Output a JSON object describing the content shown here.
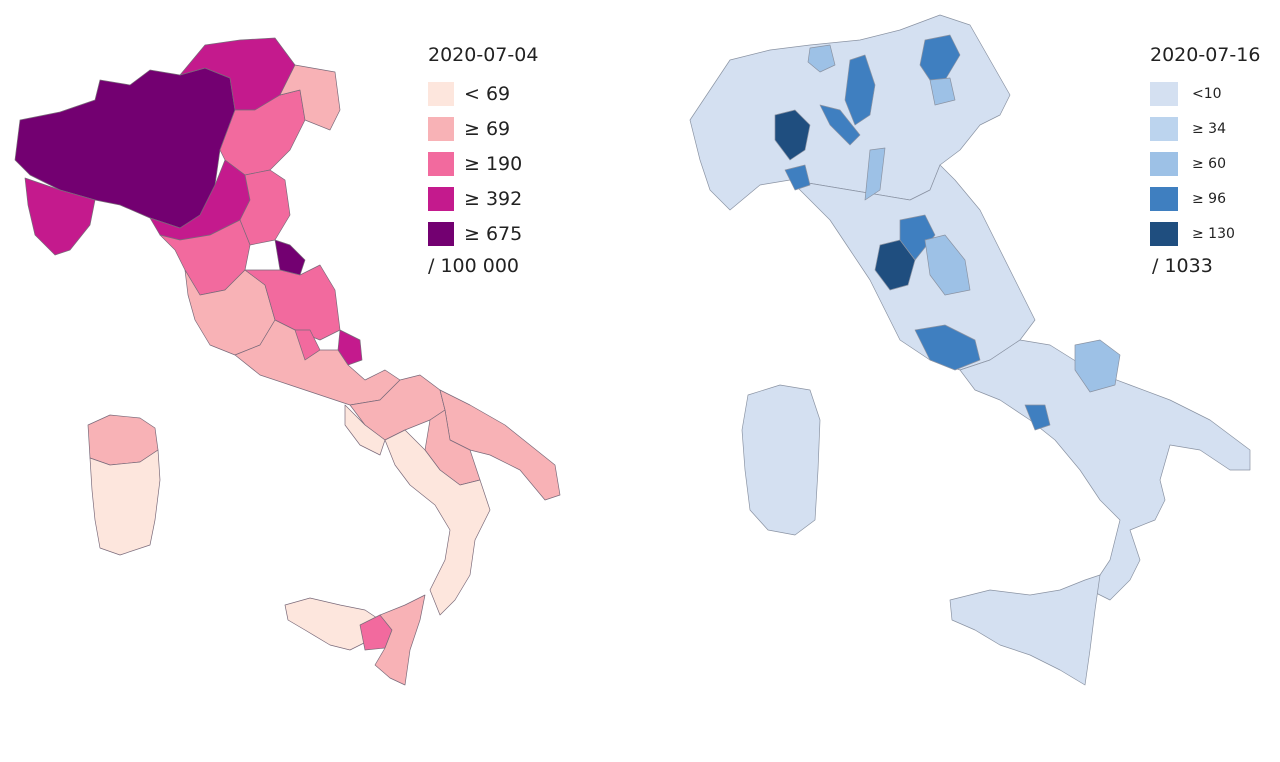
{
  "left_map": {
    "date": "2020-07-04",
    "per": "/ 100 000",
    "legend": [
      {
        "label": "< 69",
        "color": "#fde6dd"
      },
      {
        "label": "≥ 69",
        "color": "#f8b2b6"
      },
      {
        "label": "≥ 190",
        "color": "#f26a9e"
      },
      {
        "label": "≥ 392",
        "color": "#c41a8d"
      },
      {
        "label": "≥ 675",
        "color": "#730071"
      }
    ]
  },
  "right_map": {
    "date": "2020-07-16",
    "per": "/ 1033",
    "legend": [
      {
        "label": "<10",
        "color": "#d4e0f1"
      },
      {
        "label": "≥ 34",
        "color": "#bcd4ee"
      },
      {
        "label": "≥ 60",
        "color": "#9dc1e6"
      },
      {
        "label": "≥ 96",
        "color": "#3f7fc0"
      },
      {
        "label": "≥ 130",
        "color": "#1f4e7f"
      }
    ]
  }
}
